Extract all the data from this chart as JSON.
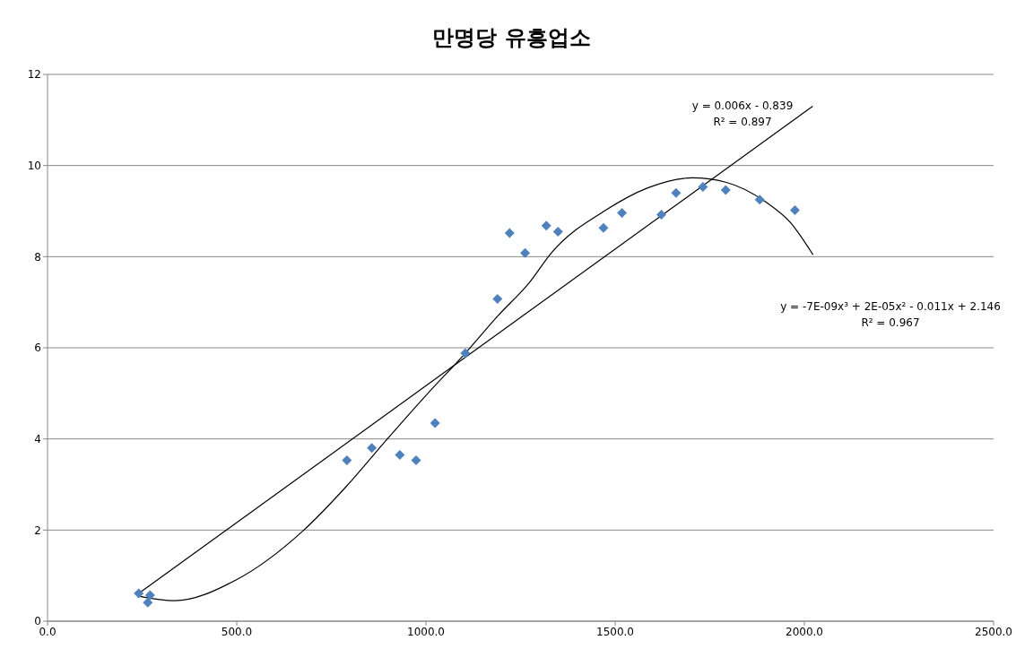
{
  "chart_data": {
    "type": "scatter",
    "title": "만명당 유흥업소",
    "xlim": [
      0,
      2500
    ],
    "xticks": [
      {
        "value": 0,
        "label": "0.0"
      },
      {
        "value": 500,
        "label": "500.0"
      },
      {
        "value": 1000,
        "label": "1000.0"
      },
      {
        "value": 1500,
        "label": "1500.0"
      },
      {
        "value": 2000,
        "label": "2000.0"
      },
      {
        "value": 2500,
        "label": "2500.0"
      }
    ],
    "ylim": [
      0,
      12
    ],
    "yticks": [
      0,
      2,
      4,
      6,
      8,
      10,
      12
    ],
    "grid": "y",
    "marker": "diamond",
    "series": [
      {
        "color": "#4f81bd",
        "x": [
          241,
          271,
          265,
          791,
          857,
          931,
          974,
          1024,
          1104,
          1189,
          1221,
          1262,
          1318,
          1349,
          1469,
          1518,
          1622,
          1661,
          1732,
          1792,
          1882,
          1975
        ],
        "values": [
          0.61,
          0.57,
          0.41,
          3.53,
          3.8,
          3.65,
          3.53,
          4.35,
          5.88,
          7.07,
          8.52,
          8.08,
          8.68,
          8.55,
          8.63,
          8.96,
          8.92,
          9.4,
          9.53,
          9.46,
          9.25,
          9.02
        ]
      },
      {
        "type": "line",
        "color": "#000000",
        "marker": "none",
        "x": [
          241,
          2022
        ],
        "values": [
          0.61,
          11.3
        ]
      },
      {
        "type": "line",
        "color": "#000000",
        "marker": "none",
        "x": [
          241,
          335,
          497,
          676,
          791,
          898,
          1005,
          1104,
          1190,
          1274,
          1331,
          1473,
          1586,
          1704,
          1794,
          1898,
          1964,
          2023
        ],
        "values": [
          0.55,
          0.45,
          0.9,
          1.99,
          2.97,
          4.0,
          5.0,
          5.88,
          6.7,
          7.44,
          8.08,
          9.01,
          9.51,
          9.73,
          9.63,
          9.2,
          8.74,
          8.04
        ]
      }
    ],
    "annotations": [
      "y = 0.006x - 0.839",
      "R² = 0.897",
      "y = -7E-09x³ + 2E-05x² - 0.011x + 2.146",
      "R² = 0.967"
    ]
  }
}
